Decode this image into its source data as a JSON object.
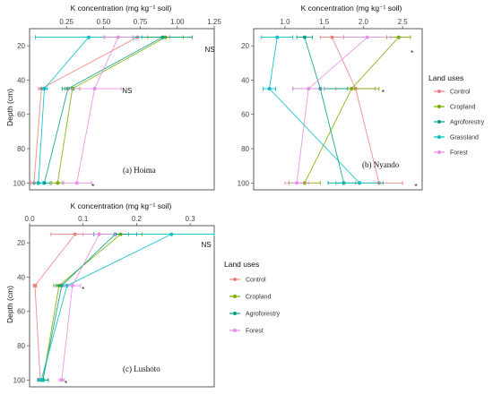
{
  "colors": {
    "Control": "#F08080",
    "Cropland": "#7CAE00",
    "Agroforestry": "#00A08A",
    "Grassland": "#00BFC4",
    "Forest": "#E68FE6"
  },
  "legends": [
    {
      "title": "Land uses",
      "items": [
        "Control",
        "Cropland",
        "Agroforestry",
        "Grassland",
        "Forest"
      ]
    },
    {
      "title": "Land uses",
      "items": [
        "Control",
        "Cropland",
        "Agroforestry",
        "Forest"
      ]
    }
  ],
  "chart_data": [
    {
      "type": "line",
      "panel_label": "(a) Hoima",
      "xlabel": "K concentration (mg kg⁻¹ soil)",
      "ylabel": "Depth (cm)",
      "xlim": [
        0,
        1.25
      ],
      "ylim": [
        10,
        104
      ],
      "x_ticks": [
        0.25,
        0.5,
        0.75,
        1.0,
        1.25
      ],
      "x_tick_labels": [
        "0.25",
        "0.50",
        "0.75",
        "1.00",
        "1.25"
      ],
      "y_ticks": [
        20,
        40,
        60,
        80,
        100
      ],
      "series": [
        {
          "name": "Control",
          "depths": [
            15,
            45,
            100
          ],
          "values": [
            0.73,
            0.08,
            0.03
          ],
          "errors": [
            0.22,
            0.02,
            0.02
          ]
        },
        {
          "name": "Cropland",
          "depths": [
            15,
            45,
            100
          ],
          "values": [
            0.92,
            0.29,
            0.19
          ],
          "errors": [
            0.12,
            0.05,
            0.04
          ]
        },
        {
          "name": "Agroforestry",
          "depths": [
            15,
            45,
            100
          ],
          "values": [
            0.9,
            0.26,
            0.1
          ],
          "errors": [
            0.2,
            0.04,
            0.04
          ]
        },
        {
          "name": "Grassland",
          "depths": [
            15,
            45,
            100
          ],
          "values": [
            0.4,
            0.1,
            0.06
          ],
          "errors": [
            0.36,
            0.02,
            0.03
          ]
        },
        {
          "name": "Forest",
          "depths": [
            15,
            45,
            100
          ],
          "values": [
            0.6,
            0.44,
            0.32
          ],
          "errors": [
            0.1,
            0.18,
            0.1
          ]
        }
      ],
      "annotations": [
        {
          "text": "NS",
          "x": 1.22,
          "y": 22
        },
        {
          "text": "NS",
          "x": 0.66,
          "y": 46
        },
        {
          "text": "*",
          "x": 0.43,
          "y": 102
        }
      ]
    },
    {
      "type": "line",
      "panel_label": "(b) Nyando",
      "xlabel": "K concentration (mg kg⁻¹ soil)",
      "ylabel": "",
      "xlim": [
        0.6,
        2.75
      ],
      "ylim": [
        10,
        104
      ],
      "x_ticks": [
        1.0,
        1.5,
        2.0,
        2.5
      ],
      "x_tick_labels": [
        "1.0",
        "1.5",
        "2.0",
        "2.5"
      ],
      "y_ticks": [
        20,
        40,
        60,
        80,
        100
      ],
      "series": [
        {
          "name": "Control",
          "depths": [
            15,
            45,
            100
          ],
          "values": [
            1.6,
            1.9,
            2.2
          ],
          "errors": [
            0.15,
            0.25,
            0.3
          ]
        },
        {
          "name": "Cropland",
          "depths": [
            15,
            45,
            100
          ],
          "values": [
            2.45,
            1.85,
            1.25
          ],
          "errors": [
            0.15,
            0.35,
            0.2
          ]
        },
        {
          "name": "Agroforestry",
          "depths": [
            15,
            45,
            100
          ],
          "values": [
            1.25,
            1.45,
            1.75
          ],
          "errors": [
            0.1,
            0.35,
            0.2
          ]
        },
        {
          "name": "Grassland",
          "depths": [
            15,
            45,
            100
          ],
          "values": [
            0.9,
            0.8,
            1.95
          ],
          "errors": [
            0.2,
            0.08,
            0.3
          ]
        },
        {
          "name": "Forest",
          "depths": [
            15,
            45,
            100
          ],
          "values": [
            2.05,
            1.3,
            1.15
          ],
          "errors": [
            0.3,
            0.2,
            0.15
          ]
        }
      ],
      "annotations": [
        {
          "text": "*",
          "x": 2.62,
          "y": 24
        },
        {
          "text": "*",
          "x": 2.25,
          "y": 47
        },
        {
          "text": "*",
          "x": 2.67,
          "y": 102
        }
      ]
    },
    {
      "type": "line",
      "panel_label": "(c) Lushoto",
      "xlabel": "K concentration (mg kg⁻¹ soil)",
      "ylabel": "Depth (cm)",
      "xlim": [
        0,
        0.345
      ],
      "ylim": [
        10,
        104
      ],
      "x_ticks": [
        0.0,
        0.1,
        0.2,
        0.3
      ],
      "x_tick_labels": [
        "0.0",
        "0.1",
        "0.2",
        "0.3"
      ],
      "y_ticks": [
        20,
        40,
        60,
        80,
        100
      ],
      "series": [
        {
          "name": "Control",
          "depths": [
            15,
            45,
            100
          ],
          "values": [
            0.085,
            0.01,
            0.02
          ],
          "errors": [
            0.045,
            0.003,
            0.005
          ]
        },
        {
          "name": "Cropland",
          "depths": [
            15,
            45,
            100
          ],
          "values": [
            0.17,
            0.055,
            0.025
          ],
          "errors": [
            0.04,
            0.01,
            0.01
          ]
        },
        {
          "name": "Agroforestry",
          "depths": [
            15,
            45,
            100
          ],
          "values": [
            0.16,
            0.06,
            0.025
          ],
          "errors": [
            0.04,
            0.01,
            0.01
          ]
        },
        {
          "name": "Grassland",
          "depths": [
            15,
            45,
            100
          ],
          "values": [
            0.265,
            0.07,
            0.022
          ],
          "errors": [
            0.08,
            0.01,
            0.005
          ]
        },
        {
          "name": "Forest",
          "depths": [
            15,
            45,
            100
          ],
          "values": [
            0.13,
            0.08,
            0.06
          ],
          "errors": [
            0.03,
            0.015,
            0.005
          ]
        }
      ],
      "annotations": [
        {
          "text": "NS",
          "x": 0.33,
          "y": 21
        },
        {
          "text": "*",
          "x": 0.1,
          "y": 47
        },
        {
          "text": "*",
          "x": 0.068,
          "y": 102
        }
      ]
    }
  ]
}
